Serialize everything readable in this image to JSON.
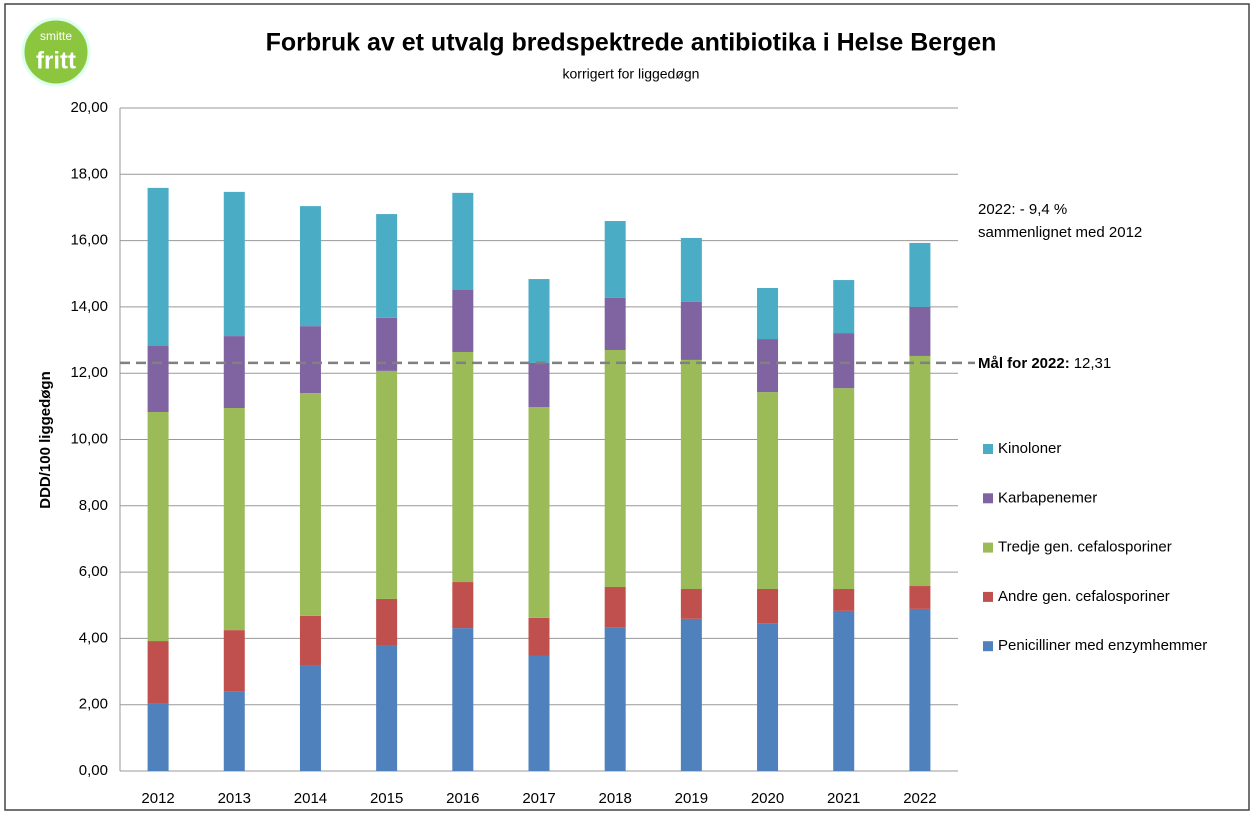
{
  "chart_data": {
    "type": "stacked_bar",
    "title": "Forbruk av et utvalg bredspektrede antibiotika i Helse Bergen",
    "subtitle": "korrigert for liggedøgn",
    "y_label": "DDD/100 liggedøgn",
    "logo": {
      "top": "smitte",
      "bottom": "fritt"
    },
    "categories": [
      "2012",
      "2013",
      "2014",
      "2015",
      "2016",
      "2017",
      "2018",
      "2019",
      "2020",
      "2021",
      "2022"
    ],
    "series": [
      {
        "name": "Penicilliner med enzymhemmer",
        "color": "#4f81bd",
        "values": [
          2.05,
          2.41,
          3.17,
          3.8,
          4.31,
          3.47,
          4.34,
          4.59,
          4.46,
          4.83,
          4.89
        ]
      },
      {
        "name": "Andre gen. cefalosporiner",
        "color": "#c0504d",
        "values": [
          1.87,
          1.84,
          1.51,
          1.39,
          1.39,
          1.15,
          1.21,
          0.9,
          1.03,
          0.66,
          0.69
        ]
      },
      {
        "name": "Tredje gen. cefalosporiner",
        "color": "#9bbb59",
        "values": [
          6.91,
          6.7,
          6.72,
          6.88,
          6.94,
          6.36,
          7.15,
          6.91,
          5.94,
          6.06,
          6.94
        ]
      },
      {
        "name": "Karbapenemer",
        "color": "#8064a2",
        "values": [
          1.99,
          2.17,
          2.02,
          1.6,
          1.87,
          1.33,
          1.57,
          1.75,
          1.6,
          1.66,
          1.48
        ]
      },
      {
        "name": "Kinoloner",
        "color": "#4bacc6",
        "values": [
          4.77,
          4.35,
          3.62,
          3.13,
          2.93,
          2.53,
          2.32,
          1.93,
          1.54,
          1.6,
          1.93
        ]
      }
    ],
    "ylim": [
      0,
      20
    ],
    "yticks": [
      {
        "value": 0,
        "label": "0,00"
      },
      {
        "value": 2,
        "label": "2,00"
      },
      {
        "value": 4,
        "label": "4,00"
      },
      {
        "value": 6,
        "label": "6,00"
      },
      {
        "value": 8,
        "label": "8,00"
      },
      {
        "value": 10,
        "label": "10,00"
      },
      {
        "value": 12,
        "label": "12,00"
      },
      {
        "value": 14,
        "label": "14,00"
      },
      {
        "value": 16,
        "label": "16,00"
      },
      {
        "value": 18,
        "label": "18,00"
      },
      {
        "value": 20,
        "label": "20,00"
      }
    ],
    "grid": true,
    "legend": "right",
    "target": {
      "label": "Mål for 2022:",
      "value": 12.31,
      "value_label": "12,31"
    },
    "annotation": [
      "2022: - 9,4 %",
      "sammenlignet med 2012"
    ]
  }
}
